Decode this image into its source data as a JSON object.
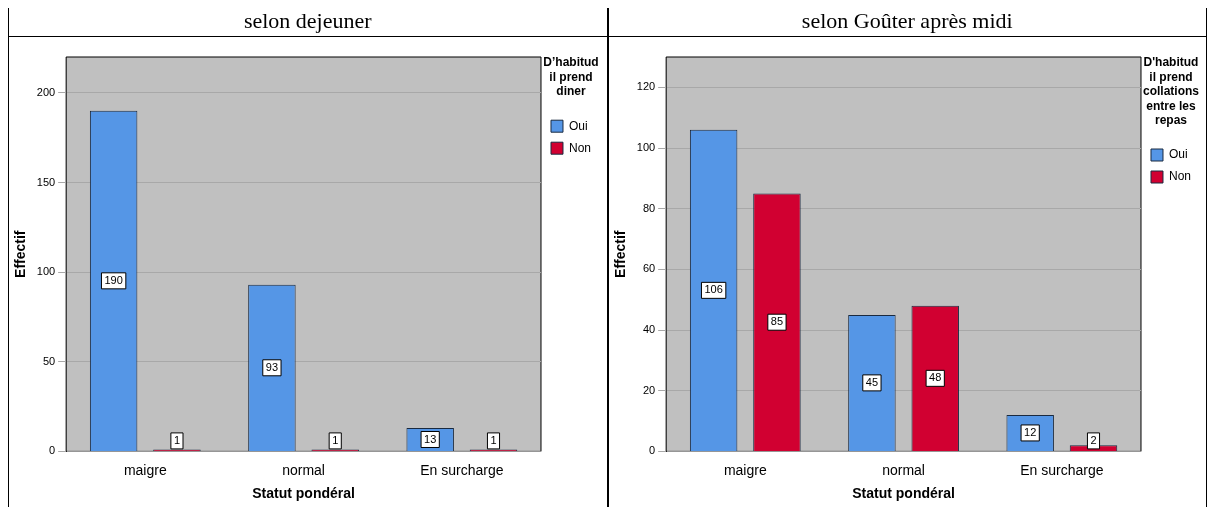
{
  "chart_data": [
    {
      "type": "bar",
      "title": "selon dejeuner",
      "xlabel": "Statut pondéral",
      "ylabel": "Effectif",
      "legend_title": "D’habitud il prend diner",
      "categories": [
        "maigre",
        "normal",
        "En surcharge"
      ],
      "series": [
        {
          "name": "Oui",
          "color": "#5596e6",
          "values": [
            190,
            93,
            13
          ]
        },
        {
          "name": "Non",
          "color": "#d10031",
          "values": [
            1,
            1,
            1
          ]
        }
      ],
      "ylim": [
        0,
        220
      ],
      "yticks": [
        0,
        50,
        100,
        150,
        200
      ],
      "grid": "y",
      "legend": "right",
      "data_labels": true
    },
    {
      "type": "bar",
      "title": "selon Goûter après midi",
      "xlabel": "Statut pondéral",
      "ylabel": "Effectif",
      "legend_title": "D'habitud il prend collations entre les repas",
      "categories": [
        "maigre",
        "normal",
        "En surcharge"
      ],
      "series": [
        {
          "name": "Oui",
          "color": "#5596e6",
          "values": [
            106,
            45,
            12
          ]
        },
        {
          "name": "Non",
          "color": "#d10031",
          "values": [
            85,
            48,
            2
          ]
        }
      ],
      "ylim": [
        0,
        130
      ],
      "yticks": [
        0,
        20,
        40,
        60,
        80,
        100,
        120
      ],
      "grid": "y",
      "legend": "right",
      "data_labels": true
    }
  ]
}
